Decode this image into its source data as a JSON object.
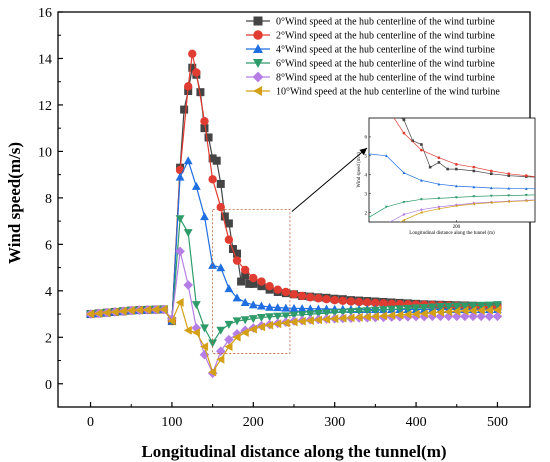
{
  "chart_data": {
    "type": "line",
    "xlabel": "Longitudinal distance along the tunnel(m)",
    "ylabel": "Wind speed(m/s)",
    "xlim": [
      -40,
      540
    ],
    "ylim": [
      -1,
      16
    ],
    "xticks": [
      0,
      100,
      200,
      300,
      400,
      500
    ],
    "yticks": [
      0,
      2,
      4,
      6,
      8,
      10,
      12,
      14,
      16
    ],
    "legend_position": "top-right",
    "grid": false,
    "series": [
      {
        "name": "0°Wind speed at the hub centerline of the wind turbine",
        "color": "#444444",
        "marker": "square",
        "x": [
          0,
          10,
          20,
          30,
          40,
          50,
          60,
          70,
          80,
          90,
          100,
          110,
          115,
          120,
          125,
          130,
          135,
          140,
          145,
          150,
          155,
          160,
          165,
          170,
          175,
          180,
          185,
          190,
          195,
          200,
          210,
          220,
          230,
          240,
          250,
          260,
          270,
          280,
          290,
          300,
          310,
          320,
          330,
          340,
          350,
          360,
          370,
          380,
          390,
          400,
          410,
          420,
          430,
          440,
          450,
          460,
          470,
          480,
          490,
          500
        ],
        "values": [
          3.0,
          3.03,
          3.06,
          3.09,
          3.12,
          3.15,
          3.17,
          3.18,
          3.19,
          3.2,
          2.7,
          9.3,
          11.8,
          12.6,
          13.6,
          13.3,
          12.55,
          11.0,
          10.6,
          9.7,
          9.6,
          8.6,
          7.2,
          6.9,
          5.8,
          5.6,
          4.4,
          4.65,
          4.3,
          4.3,
          4.2,
          4.05,
          3.95,
          3.9,
          3.85,
          3.78,
          3.75,
          3.72,
          3.7,
          3.66,
          3.64,
          3.6,
          3.58,
          3.56,
          3.54,
          3.52,
          3.5,
          3.48,
          3.46,
          3.44,
          3.42,
          3.41,
          3.4,
          3.39,
          3.38,
          3.37,
          3.36,
          3.35,
          3.34,
          3.33
        ]
      },
      {
        "name": "2°Wind speed at the hub centerline of the wind turbine",
        "color": "#e03c31",
        "marker": "circle",
        "x": [
          0,
          10,
          20,
          30,
          40,
          50,
          60,
          70,
          80,
          90,
          100,
          110,
          120,
          125,
          130,
          140,
          150,
          160,
          170,
          180,
          190,
          200,
          210,
          220,
          230,
          240,
          250,
          260,
          270,
          280,
          290,
          300,
          310,
          320,
          330,
          340,
          350,
          360,
          370,
          380,
          390,
          400,
          410,
          420,
          430,
          440,
          450,
          460,
          470,
          480,
          490,
          500
        ],
        "values": [
          3.0,
          3.03,
          3.06,
          3.09,
          3.12,
          3.15,
          3.17,
          3.18,
          3.19,
          3.2,
          2.7,
          9.2,
          12.8,
          14.2,
          13.4,
          11.3,
          8.8,
          7.6,
          6.2,
          5.3,
          4.9,
          4.55,
          4.4,
          4.2,
          4.05,
          3.95,
          3.85,
          3.78,
          3.72,
          3.68,
          3.64,
          3.6,
          3.57,
          3.54,
          3.52,
          3.5,
          3.48,
          3.46,
          3.44,
          3.43,
          3.42,
          3.41,
          3.4,
          3.39,
          3.38,
          3.37,
          3.36,
          3.35,
          3.34,
          3.33,
          3.32,
          3.31
        ]
      },
      {
        "name": "4°Wind speed at the hub centerline of the wind turbine",
        "color": "#1f6fe0",
        "marker": "triangle-up",
        "x": [
          0,
          10,
          20,
          30,
          40,
          50,
          60,
          70,
          80,
          90,
          100,
          110,
          120,
          130,
          140,
          150,
          160,
          170,
          180,
          190,
          200,
          210,
          220,
          230,
          240,
          250,
          260,
          270,
          280,
          290,
          300,
          310,
          320,
          330,
          340,
          350,
          360,
          370,
          380,
          390,
          400,
          410,
          420,
          430,
          440,
          450,
          460,
          470,
          480,
          490,
          500
        ],
        "values": [
          3.0,
          3.03,
          3.06,
          3.09,
          3.12,
          3.15,
          3.17,
          3.18,
          3.19,
          3.2,
          2.7,
          8.9,
          9.6,
          8.5,
          7.2,
          5.1,
          5.0,
          4.1,
          3.7,
          3.5,
          3.4,
          3.35,
          3.3,
          3.28,
          3.26,
          3.25,
          3.24,
          3.23,
          3.22,
          3.22,
          3.21,
          3.21,
          3.2,
          3.2,
          3.2,
          3.2,
          3.2,
          3.2,
          3.2,
          3.2,
          3.2,
          3.2,
          3.2,
          3.2,
          3.2,
          3.2,
          3.2,
          3.2,
          3.2,
          3.2,
          3.2
        ]
      },
      {
        "name": "6°Wind speed at the hub centerline of the wind turbine",
        "color": "#2e9b6a",
        "marker": "triangle-down",
        "x": [
          0,
          10,
          20,
          30,
          40,
          50,
          60,
          70,
          80,
          90,
          100,
          110,
          120,
          130,
          140,
          150,
          160,
          170,
          180,
          190,
          200,
          210,
          220,
          230,
          240,
          250,
          260,
          270,
          280,
          290,
          300,
          310,
          320,
          330,
          340,
          350,
          360,
          370,
          380,
          390,
          400,
          410,
          420,
          430,
          440,
          450,
          460,
          470,
          480,
          490,
          500
        ],
        "values": [
          3.0,
          3.03,
          3.06,
          3.09,
          3.12,
          3.15,
          3.17,
          3.18,
          3.19,
          3.2,
          2.7,
          7.1,
          6.5,
          3.4,
          2.4,
          1.75,
          2.3,
          2.55,
          2.7,
          2.75,
          2.8,
          2.85,
          2.88,
          2.9,
          2.92,
          2.95,
          2.97,
          3.0,
          3.02,
          3.04,
          3.06,
          3.08,
          3.1,
          3.12,
          3.14,
          3.16,
          3.18,
          3.2,
          3.22,
          3.24,
          3.26,
          3.28,
          3.3,
          3.32,
          3.33,
          3.34,
          3.35,
          3.36,
          3.37,
          3.38,
          3.4
        ]
      },
      {
        "name": "8°Wind speed at the hub centerline of the wind turbine",
        "color": "#b57ee6",
        "marker": "diamond",
        "x": [
          0,
          10,
          20,
          30,
          40,
          50,
          60,
          70,
          80,
          90,
          100,
          110,
          120,
          130,
          140,
          150,
          160,
          170,
          180,
          190,
          200,
          210,
          220,
          230,
          240,
          250,
          260,
          270,
          280,
          290,
          300,
          310,
          320,
          330,
          340,
          350,
          360,
          370,
          380,
          390,
          400,
          410,
          420,
          430,
          440,
          450,
          460,
          470,
          480,
          490,
          500
        ],
        "values": [
          3.0,
          3.03,
          3.06,
          3.09,
          3.12,
          3.15,
          3.17,
          3.18,
          3.19,
          3.2,
          2.8,
          5.7,
          4.25,
          2.4,
          1.25,
          0.45,
          1.4,
          1.9,
          2.15,
          2.3,
          2.4,
          2.5,
          2.55,
          2.6,
          2.65,
          2.7,
          2.72,
          2.75,
          2.77,
          2.79,
          2.8,
          2.81,
          2.82,
          2.83,
          2.84,
          2.85,
          2.86,
          2.87,
          2.88,
          2.88,
          2.89,
          2.89,
          2.9,
          2.9,
          2.9,
          2.9,
          2.9,
          2.9,
          2.9,
          2.9,
          2.9
        ]
      },
      {
        "name": "10°Wind speed at the hub centerline of the wind turbine",
        "color": "#d4a017",
        "marker": "triangle-left",
        "x": [
          0,
          10,
          20,
          30,
          40,
          50,
          60,
          70,
          80,
          90,
          100,
          110,
          120,
          130,
          140,
          150,
          160,
          170,
          180,
          190,
          200,
          210,
          220,
          230,
          240,
          250,
          260,
          270,
          280,
          290,
          300,
          310,
          320,
          330,
          340,
          350,
          360,
          370,
          380,
          390,
          400,
          410,
          420,
          430,
          440,
          450,
          460,
          470,
          480,
          490,
          500
        ],
        "values": [
          3.0,
          3.03,
          3.06,
          3.09,
          3.12,
          3.15,
          3.17,
          3.18,
          3.19,
          3.2,
          2.7,
          3.5,
          2.3,
          2.2,
          1.6,
          0.5,
          1.05,
          1.6,
          2.0,
          2.2,
          2.35,
          2.45,
          2.52,
          2.58,
          2.62,
          2.66,
          2.69,
          2.72,
          2.75,
          2.77,
          2.8,
          2.82,
          2.84,
          2.86,
          2.88,
          2.9,
          2.92,
          2.94,
          2.96,
          2.98,
          3.0,
          3.02,
          3.05,
          3.08,
          3.1,
          3.12,
          3.14,
          3.15,
          3.16,
          3.17,
          3.18
        ]
      }
    ],
    "zoom_box": {
      "x": [
        150,
        245
      ],
      "y": [
        1.3,
        7.5
      ]
    },
    "inset": {
      "xlabel": "Longitudinal distance along the tunnel (m)",
      "ylabel": "Wind speed (m/s)",
      "xticks": [
        200
      ],
      "yticks": [
        2,
        3,
        4,
        5,
        6
      ],
      "xlim": [
        150,
        245
      ],
      "ylim": [
        1.5,
        7.0
      ]
    }
  }
}
